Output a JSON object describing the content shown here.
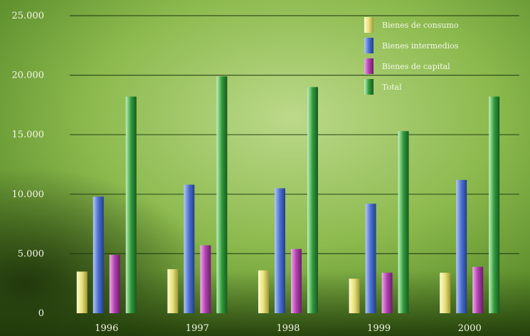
{
  "chart_data": {
    "type": "bar",
    "categories": [
      "1996",
      "1997",
      "1998",
      "1999",
      "2000"
    ],
    "series": [
      {
        "name": "Bienes de consumo",
        "color": "#e8e07a",
        "values": [
          3500,
          3700,
          3600,
          2900,
          3400
        ]
      },
      {
        "name": "Bienes intermedios",
        "color": "#4a6fd0",
        "values": [
          9800,
          10800,
          10500,
          9200,
          11200
        ]
      },
      {
        "name": "Bienes de capital",
        "color": "#b23fb0",
        "values": [
          4900,
          5700,
          5400,
          3400,
          3900
        ]
      },
      {
        "name": "Total",
        "color": "#2f9a3a",
        "values": [
          18200,
          19900,
          19000,
          15300,
          18200
        ]
      }
    ],
    "y_ticks": [
      "0",
      "5.000",
      "10.000",
      "15.000",
      "20.000",
      "25.000"
    ],
    "ylim": [
      0,
      25000
    ],
    "grid": true,
    "legend_position": "top-right"
  }
}
